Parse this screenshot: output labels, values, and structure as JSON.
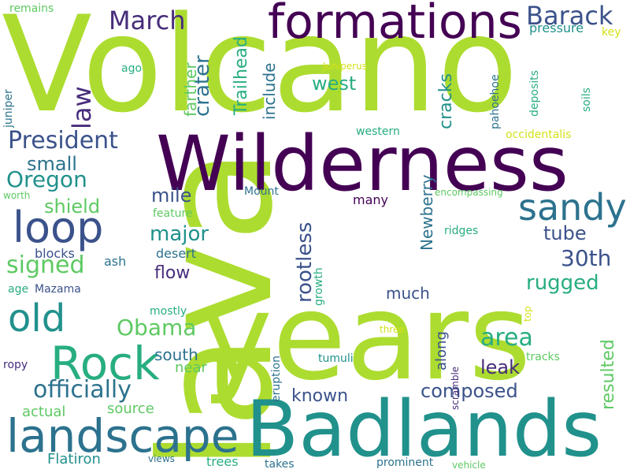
{
  "colors": {
    "lime": "#addc30",
    "green": "#5ec962",
    "teal": "#21918c",
    "mint": "#27ad81",
    "steel": "#2c728e",
    "slate": "#3b528b",
    "indigo": "#472d7b",
    "purple": "#440154",
    "yellow": "#d4e21a"
  },
  "words": [
    "lava",
    "Volcano",
    "years",
    "Badlands",
    "Wilderness",
    "formations",
    "landscape",
    "Rock",
    "loop",
    "old",
    "sandy",
    "Barack",
    "March",
    "law",
    "President",
    "Oregon",
    "officially",
    "Obama",
    "signed",
    "shield",
    "small",
    "mile",
    "major",
    "area",
    "rugged",
    "30th",
    "tube",
    "west",
    "crater",
    "farther",
    "Trailhead",
    "include",
    "cracks",
    "rootless",
    "Newberry",
    "flow",
    "south",
    "leak",
    "composed",
    "known",
    "resulted",
    "along",
    "much",
    "near",
    "source",
    "actual",
    "Flatiron",
    "desert",
    "blocks",
    "ash",
    "Mazama",
    "mostly",
    "age",
    "ropy",
    "worth",
    "juniper",
    "remains",
    "ago",
    "western",
    "Juniperus",
    "occidentalis",
    "pahoehoe",
    "deposits",
    "soils",
    "pressure",
    "key",
    "Mount",
    "many",
    "encompassing",
    "ridges",
    "feature",
    "growth",
    "eruption",
    "tumuli",
    "three",
    "scramble",
    "tracks",
    "top",
    "trees",
    "takes",
    "views",
    "vehicle",
    "prominent"
  ]
}
